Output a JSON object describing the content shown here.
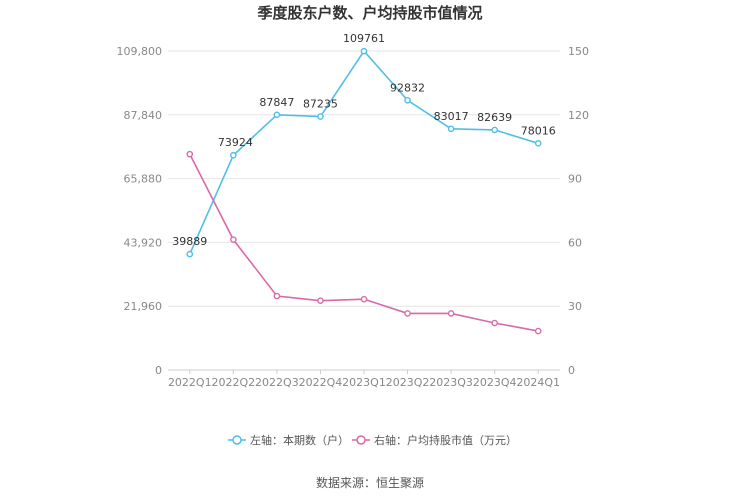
{
  "chart_data": {
    "type": "line",
    "title": "季度股东户数、户均持股市值情况",
    "categories": [
      "2022Q1",
      "2022Q2",
      "2022Q3",
      "2022Q4",
      "2023Q1",
      "2023Q2",
      "2023Q3",
      "2023Q4",
      "2024Q1"
    ],
    "left_axis": {
      "min": 0,
      "max": 109800,
      "ticks": [
        "0",
        "21,960",
        "43,920",
        "65,880",
        "87,840",
        "109,800"
      ]
    },
    "right_axis": {
      "min": 0,
      "max": 150,
      "ticks": [
        "0",
        "30",
        "60",
        "90",
        "120",
        "150"
      ]
    },
    "series": [
      {
        "name": "左轴：本期数（户）",
        "axis": "left",
        "color": "#4fbfe8",
        "values": [
          39889,
          73924,
          87847,
          87235,
          109761,
          92832,
          83017,
          82639,
          78016
        ],
        "labels": [
          "39889",
          "73924",
          "87847",
          "87235",
          "109761",
          "92832",
          "83017",
          "82639",
          "78016"
        ]
      },
      {
        "name": "右轴：户均持股市值（万元）",
        "axis": "right",
        "color": "#d96aa8",
        "values": [
          101.5,
          61.3,
          34.8,
          32.6,
          33.3,
          26.6,
          26.6,
          22.1,
          18.3
        ]
      }
    ],
    "grid": true,
    "legend": "bottom"
  },
  "source": "数据来源：恒生聚源"
}
